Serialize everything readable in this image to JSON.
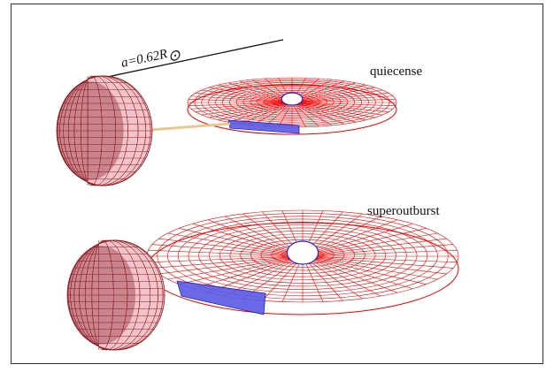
{
  "scale_label": {
    "text": "a=0.62R",
    "subscript": "⊙"
  },
  "panels": [
    {
      "label": "quiecense"
    },
    {
      "label": "superoutburst"
    }
  ]
}
